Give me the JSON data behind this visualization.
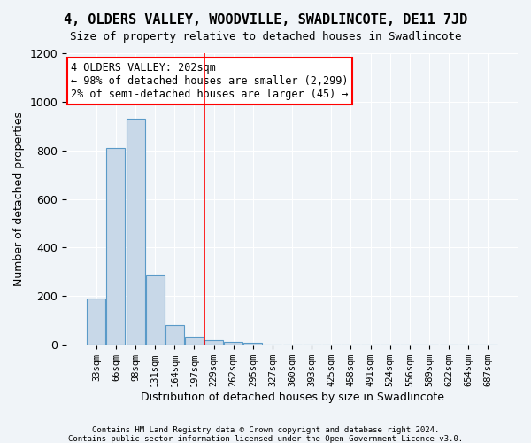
{
  "title": "4, OLDERS VALLEY, WOODVILLE, SWADLINCOTE, DE11 7JD",
  "subtitle": "Size of property relative to detached houses in Swadlincote",
  "xlabel": "Distribution of detached houses by size in Swadlincote",
  "ylabel": "Number of detached properties",
  "bar_color": "#c8d8e8",
  "bar_edge_color": "#5a9ac8",
  "categories": [
    "33sqm",
    "66sqm",
    "98sqm",
    "131sqm",
    "164sqm",
    "197sqm",
    "229sqm",
    "262sqm",
    "295sqm",
    "327sqm",
    "360sqm",
    "393sqm",
    "425sqm",
    "458sqm",
    "491sqm",
    "524sqm",
    "556sqm",
    "589sqm",
    "622sqm",
    "654sqm",
    "687sqm"
  ],
  "values": [
    190,
    810,
    930,
    290,
    80,
    35,
    20,
    13,
    9,
    0,
    0,
    0,
    0,
    0,
    0,
    0,
    0,
    0,
    0,
    0,
    0
  ],
  "ylim": [
    0,
    1200
  ],
  "yticks": [
    0,
    200,
    400,
    600,
    800,
    1000,
    1200
  ],
  "vline_x": 5.5,
  "annotation_text": "4 OLDERS VALLEY: 202sqm\n← 98% of detached houses are smaller (2,299)\n2% of semi-detached houses are larger (45) →",
  "footer1": "Contains HM Land Registry data © Crown copyright and database right 2024.",
  "footer2": "Contains public sector information licensed under the Open Government Licence v3.0.",
  "bg_color": "#f0f4f8",
  "plot_bg_color": "#f0f4f8"
}
